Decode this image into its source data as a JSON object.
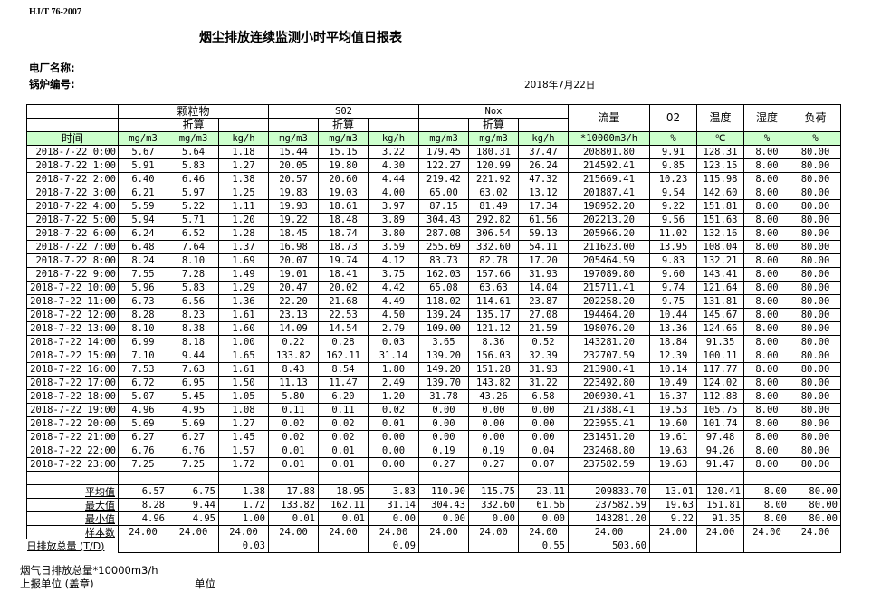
{
  "header": {
    "standard": "HJ/T  76-2007",
    "title": "烟尘排放连续监测小时平均值日报表",
    "plant_label": "电厂名称:",
    "boiler_label": "锅炉编号:",
    "date": "2018年7月22日"
  },
  "table": {
    "groups": {
      "particulate": "颗粒物",
      "so2": "S02",
      "nox": "Nox",
      "flow": "流量",
      "o2": "02",
      "temp": "温度",
      "humidity": "湿度",
      "load": "负荷"
    },
    "converted": "折算",
    "time_label": "时间",
    "units": [
      "mg/m3",
      "mg/m3",
      "kg/h",
      "mg/m3",
      "mg/m3",
      "kg/h",
      "mg/m3",
      "mg/m3",
      "kg/h",
      "*10000m3/h",
      "%",
      "℃",
      "%",
      "%"
    ],
    "rows": [
      [
        "2018-7-22 0:00",
        "5.67",
        "5.64",
        "1.18",
        "15.44",
        "15.15",
        "3.22",
        "179.45",
        "180.31",
        "37.47",
        "208801.80",
        "9.91",
        "128.31",
        "8.00",
        "80.00"
      ],
      [
        "2018-7-22 1:00",
        "5.91",
        "5.83",
        "1.27",
        "20.05",
        "19.80",
        "4.30",
        "122.27",
        "120.99",
        "26.24",
        "214592.41",
        "9.85",
        "123.15",
        "8.00",
        "80.00"
      ],
      [
        "2018-7-22 2:00",
        "6.40",
        "6.46",
        "1.38",
        "20.57",
        "20.60",
        "4.44",
        "219.42",
        "221.92",
        "47.32",
        "215669.41",
        "10.23",
        "115.98",
        "8.00",
        "80.00"
      ],
      [
        "2018-7-22 3:00",
        "6.21",
        "5.97",
        "1.25",
        "19.83",
        "19.03",
        "4.00",
        "65.00",
        "63.02",
        "13.12",
        "201887.41",
        "9.54",
        "142.60",
        "8.00",
        "80.00"
      ],
      [
        "2018-7-22 4:00",
        "5.59",
        "5.22",
        "1.11",
        "19.93",
        "18.61",
        "3.97",
        "87.15",
        "81.49",
        "17.34",
        "198952.20",
        "9.22",
        "151.81",
        "8.00",
        "80.00"
      ],
      [
        "2018-7-22 5:00",
        "5.94",
        "5.71",
        "1.20",
        "19.22",
        "18.48",
        "3.89",
        "304.43",
        "292.82",
        "61.56",
        "202213.20",
        "9.56",
        "151.63",
        "8.00",
        "80.00"
      ],
      [
        "2018-7-22 6:00",
        "6.24",
        "6.52",
        "1.28",
        "18.45",
        "18.74",
        "3.80",
        "287.08",
        "306.54",
        "59.13",
        "205966.20",
        "11.02",
        "132.16",
        "8.00",
        "80.00"
      ],
      [
        "2018-7-22 7:00",
        "6.48",
        "7.64",
        "1.37",
        "16.98",
        "18.73",
        "3.59",
        "255.69",
        "332.60",
        "54.11",
        "211623.00",
        "13.95",
        "108.04",
        "8.00",
        "80.00"
      ],
      [
        "2018-7-22 8:00",
        "8.24",
        "8.10",
        "1.69",
        "20.07",
        "19.74",
        "4.12",
        "83.73",
        "82.78",
        "17.20",
        "205464.59",
        "9.83",
        "132.21",
        "8.00",
        "80.00"
      ],
      [
        "2018-7-22 9:00",
        "7.55",
        "7.28",
        "1.49",
        "19.01",
        "18.41",
        "3.75",
        "162.03",
        "157.66",
        "31.93",
        "197089.80",
        "9.60",
        "143.41",
        "8.00",
        "80.00"
      ],
      [
        "2018-7-22 10:00",
        "5.96",
        "5.83",
        "1.29",
        "20.47",
        "20.02",
        "4.42",
        "65.08",
        "63.63",
        "14.04",
        "215711.41",
        "9.74",
        "121.64",
        "8.00",
        "80.00"
      ],
      [
        "2018-7-22 11:00",
        "6.73",
        "6.56",
        "1.36",
        "22.20",
        "21.68",
        "4.49",
        "118.02",
        "114.61",
        "23.87",
        "202258.20",
        "9.75",
        "131.81",
        "8.00",
        "80.00"
      ],
      [
        "2018-7-22 12:00",
        "8.28",
        "8.23",
        "1.61",
        "23.13",
        "22.53",
        "4.50",
        "139.24",
        "135.17",
        "27.08",
        "194464.20",
        "10.44",
        "145.67",
        "8.00",
        "80.00"
      ],
      [
        "2018-7-22 13:00",
        "8.10",
        "8.38",
        "1.60",
        "14.09",
        "14.54",
        "2.79",
        "109.00",
        "121.12",
        "21.59",
        "198076.20",
        "13.36",
        "124.66",
        "8.00",
        "80.00"
      ],
      [
        "2018-7-22 14:00",
        "6.99",
        "8.18",
        "1.00",
        "0.22",
        "0.28",
        "0.03",
        "3.65",
        "8.36",
        "0.52",
        "143281.20",
        "18.84",
        "91.35",
        "8.00",
        "80.00"
      ],
      [
        "2018-7-22 15:00",
        "7.10",
        "9.44",
        "1.65",
        "133.82",
        "162.11",
        "31.14",
        "139.20",
        "156.03",
        "32.39",
        "232707.59",
        "12.39",
        "100.11",
        "8.00",
        "80.00"
      ],
      [
        "2018-7-22 16:00",
        "7.53",
        "7.63",
        "1.61",
        "8.43",
        "8.54",
        "1.80",
        "149.20",
        "151.28",
        "31.93",
        "213980.41",
        "10.14",
        "117.77",
        "8.00",
        "80.00"
      ],
      [
        "2018-7-22 17:00",
        "6.72",
        "6.95",
        "1.50",
        "11.13",
        "11.47",
        "2.49",
        "139.70",
        "143.82",
        "31.22",
        "223492.80",
        "10.49",
        "124.02",
        "8.00",
        "80.00"
      ],
      [
        "2018-7-22 18:00",
        "5.07",
        "5.45",
        "1.05",
        "5.80",
        "6.20",
        "1.20",
        "31.78",
        "43.26",
        "6.58",
        "206930.41",
        "16.37",
        "112.88",
        "8.00",
        "80.00"
      ],
      [
        "2018-7-22 19:00",
        "4.96",
        "4.95",
        "1.08",
        "0.11",
        "0.11",
        "0.02",
        "0.00",
        "0.00",
        "0.00",
        "217388.41",
        "19.53",
        "105.75",
        "8.00",
        "80.00"
      ],
      [
        "2018-7-22 20:00",
        "5.69",
        "5.69",
        "1.27",
        "0.02",
        "0.02",
        "0.01",
        "0.00",
        "0.00",
        "0.00",
        "223955.41",
        "19.60",
        "101.74",
        "8.00",
        "80.00"
      ],
      [
        "2018-7-22 21:00",
        "6.27",
        "6.27",
        "1.45",
        "0.02",
        "0.02",
        "0.00",
        "0.00",
        "0.00",
        "0.00",
        "231451.20",
        "19.61",
        "97.48",
        "8.00",
        "80.00"
      ],
      [
        "2018-7-22 22:00",
        "6.76",
        "6.76",
        "1.57",
        "0.01",
        "0.01",
        "0.00",
        "0.19",
        "0.19",
        "0.04",
        "232468.80",
        "19.63",
        "94.26",
        "8.00",
        "80.00"
      ],
      [
        "2018-7-22 23:00",
        "7.25",
        "7.25",
        "1.72",
        "0.01",
        "0.01",
        "0.00",
        "0.27",
        "0.27",
        "0.07",
        "237582.59",
        "19.63",
        "91.47",
        "8.00",
        "80.00"
      ]
    ],
    "summary": [
      [
        "平均值",
        "6.57",
        "6.75",
        "1.38",
        "17.88",
        "18.95",
        "3.83",
        "110.90",
        "115.75",
        "23.11",
        "209833.70",
        "13.01",
        "120.41",
        "8.00",
        "80.00"
      ],
      [
        "最大值",
        "8.28",
        "9.44",
        "1.72",
        "133.82",
        "162.11",
        "31.14",
        "304.43",
        "332.60",
        "61.56",
        "237582.59",
        "19.63",
        "151.81",
        "8.00",
        "80.00"
      ],
      [
        "最小值",
        "4.96",
        "4.95",
        "1.00",
        "0.01",
        "0.01",
        "0.00",
        "0.00",
        "0.00",
        "0.00",
        "143281.20",
        "9.22",
        "91.35",
        "8.00",
        "80.00"
      ],
      [
        "样本数",
        "24.00",
        "24.00",
        "24.00",
        "24.00",
        "24.00",
        "24.00",
        "24.00",
        "24.00",
        "24.00",
        "24.00",
        "24.00",
        "24.00",
        "24.00",
        "24.00"
      ]
    ],
    "total": [
      "日排放总量 (T/D)",
      "",
      "",
      "0.03",
      "",
      "",
      "0.09",
      "",
      "",
      "0.55",
      "503.60",
      "",
      "",
      "",
      ""
    ]
  },
  "footer": {
    "flue_gas_total": "烟气日排放总量*10000m3/h",
    "reporting_unit": "上报单位 (盖章)",
    "unit": "单位"
  },
  "colors": {
    "unit_header_bg": "#ccffcc"
  }
}
